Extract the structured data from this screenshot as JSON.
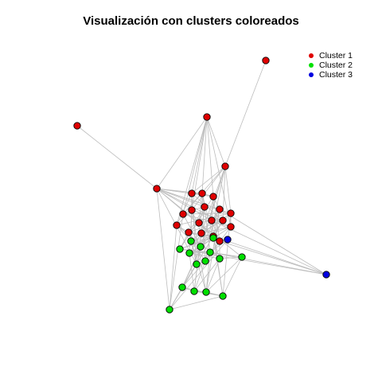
{
  "title": "Visualización con clusters coloreados",
  "legend": [
    {
      "label": "Cluster 1",
      "color": "#e00000"
    },
    {
      "label": "Cluster 2",
      "color": "#00e000"
    },
    {
      "label": "Cluster 3",
      "color": "#0000e0"
    }
  ],
  "style": {
    "edge_color": "#bdbdbd",
    "node_stroke": "#000000"
  },
  "nodes": [
    {
      "id": "n1",
      "cluster": 1
    },
    {
      "id": "n2",
      "cluster": 1
    },
    {
      "id": "n3",
      "cluster": 1
    },
    {
      "id": "n4",
      "cluster": 1
    },
    {
      "id": "n5",
      "cluster": 1
    },
    {
      "id": "n6",
      "cluster": 1
    },
    {
      "id": "n7",
      "cluster": 1
    },
    {
      "id": "n8",
      "cluster": 1
    },
    {
      "id": "n9",
      "cluster": 1
    },
    {
      "id": "n10",
      "cluster": 1
    },
    {
      "id": "n11",
      "cluster": 1
    },
    {
      "id": "n12",
      "cluster": 1
    },
    {
      "id": "n13",
      "cluster": 1
    },
    {
      "id": "n14",
      "cluster": 1
    },
    {
      "id": "n15",
      "cluster": 1
    },
    {
      "id": "n16",
      "cluster": 1
    },
    {
      "id": "n17",
      "cluster": 1
    },
    {
      "id": "n18",
      "cluster": 1
    },
    {
      "id": "n19",
      "cluster": 1
    },
    {
      "id": "n20",
      "cluster": 1
    },
    {
      "id": "n21",
      "cluster": 1
    },
    {
      "id": "n22",
      "cluster": 1
    },
    {
      "id": "n23",
      "cluster": 2
    },
    {
      "id": "n24",
      "cluster": 2
    },
    {
      "id": "n25",
      "cluster": 2
    },
    {
      "id": "n26",
      "cluster": 2
    },
    {
      "id": "n27",
      "cluster": 2
    },
    {
      "id": "n28",
      "cluster": 2
    },
    {
      "id": "n29",
      "cluster": 2
    },
    {
      "id": "n30",
      "cluster": 2
    },
    {
      "id": "n31",
      "cluster": 2
    },
    {
      "id": "n32",
      "cluster": 2
    },
    {
      "id": "n33",
      "cluster": 2
    },
    {
      "id": "n34",
      "cluster": 2
    },
    {
      "id": "n35",
      "cluster": 2
    },
    {
      "id": "n36",
      "cluster": 2
    },
    {
      "id": "n37",
      "cluster": 2
    },
    {
      "id": "n38",
      "cluster": 3
    },
    {
      "id": "n39",
      "cluster": 3
    }
  ],
  "edges": [
    [
      "n1",
      "n4"
    ],
    [
      "n2",
      "n5"
    ],
    [
      "n3",
      "n5"
    ],
    [
      "n3",
      "n4"
    ],
    [
      "n3",
      "n6"
    ],
    [
      "n3",
      "n7"
    ],
    [
      "n3",
      "n9"
    ],
    [
      "n5",
      "n6"
    ],
    [
      "n5",
      "n8"
    ],
    [
      "n5",
      "n14"
    ],
    [
      "n5",
      "n19"
    ],
    [
      "n5",
      "n29"
    ],
    [
      "n5",
      "n37"
    ],
    [
      "n4",
      "n14"
    ],
    [
      "n4",
      "n20"
    ],
    [
      "n4",
      "n30"
    ],
    [
      "n38",
      "n37"
    ],
    [
      "n38",
      "n22"
    ],
    [
      "n38",
      "n28"
    ],
    [
      "n6",
      "n7"
    ],
    [
      "n6",
      "n8"
    ],
    [
      "n6",
      "n10"
    ],
    [
      "n6",
      "n13"
    ],
    [
      "n6",
      "n17"
    ],
    [
      "n7",
      "n8"
    ],
    [
      "n7",
      "n9"
    ],
    [
      "n7",
      "n11"
    ],
    [
      "n7",
      "n15"
    ],
    [
      "n8",
      "n12"
    ],
    [
      "n8",
      "n16"
    ],
    [
      "n8",
      "n22"
    ],
    [
      "n9",
      "n10"
    ],
    [
      "n9",
      "n14"
    ],
    [
      "n9",
      "n19"
    ],
    [
      "n10",
      "n11"
    ],
    [
      "n10",
      "n13"
    ],
    [
      "n10",
      "n17"
    ],
    [
      "n10",
      "n20"
    ],
    [
      "n11",
      "n12"
    ],
    [
      "n11",
      "n15"
    ],
    [
      "n11",
      "n18"
    ],
    [
      "n12",
      "n16"
    ],
    [
      "n12",
      "n21"
    ],
    [
      "n12",
      "n39"
    ],
    [
      "n13",
      "n14"
    ],
    [
      "n13",
      "n18"
    ],
    [
      "n13",
      "n23"
    ],
    [
      "n14",
      "n19"
    ],
    [
      "n14",
      "n20"
    ],
    [
      "n14",
      "n26"
    ],
    [
      "n15",
      "n16"
    ],
    [
      "n15",
      "n18"
    ],
    [
      "n15",
      "n21"
    ],
    [
      "n16",
      "n17"
    ],
    [
      "n16",
      "n22"
    ],
    [
      "n16",
      "n39"
    ],
    [
      "n17",
      "n18"
    ],
    [
      "n17",
      "n20"
    ],
    [
      "n17",
      "n24"
    ],
    [
      "n18",
      "n21"
    ],
    [
      "n18",
      "n22"
    ],
    [
      "n18",
      "n25"
    ],
    [
      "n19",
      "n20"
    ],
    [
      "n19",
      "n23"
    ],
    [
      "n19",
      "n26"
    ],
    [
      "n20",
      "n23"
    ],
    [
      "n20",
      "n24"
    ],
    [
      "n20",
      "n27"
    ],
    [
      "n21",
      "n22"
    ],
    [
      "n21",
      "n39"
    ],
    [
      "n21",
      "n25"
    ],
    [
      "n22",
      "n39"
    ],
    [
      "n22",
      "n28"
    ],
    [
      "n23",
      "n24"
    ],
    [
      "n23",
      "n26"
    ],
    [
      "n23",
      "n29"
    ],
    [
      "n23",
      "n30"
    ],
    [
      "n24",
      "n25"
    ],
    [
      "n24",
      "n27"
    ],
    [
      "n24",
      "n31"
    ],
    [
      "n25",
      "n39"
    ],
    [
      "n25",
      "n28"
    ],
    [
      "n25",
      "n32"
    ],
    [
      "n26",
      "n27"
    ],
    [
      "n26",
      "n29"
    ],
    [
      "n26",
      "n33"
    ],
    [
      "n27",
      "n28"
    ],
    [
      "n27",
      "n31"
    ],
    [
      "n27",
      "n34"
    ],
    [
      "n28",
      "n32"
    ],
    [
      "n28",
      "n35"
    ],
    [
      "n28",
      "n39"
    ],
    [
      "n29",
      "n30"
    ],
    [
      "n29",
      "n33"
    ],
    [
      "n29",
      "n37"
    ],
    [
      "n30",
      "n33"
    ],
    [
      "n30",
      "n34"
    ],
    [
      "n31",
      "n32"
    ],
    [
      "n31",
      "n34"
    ],
    [
      "n31",
      "n35"
    ],
    [
      "n32",
      "n35"
    ],
    [
      "n32",
      "n36"
    ],
    [
      "n33",
      "n34"
    ],
    [
      "n33",
      "n37"
    ],
    [
      "n33",
      "n36"
    ],
    [
      "n34",
      "n35"
    ],
    [
      "n34",
      "n36"
    ],
    [
      "n35",
      "n36"
    ],
    [
      "n36",
      "n37"
    ],
    [
      "n6",
      "n23"
    ],
    [
      "n7",
      "n24"
    ],
    [
      "n8",
      "n25"
    ],
    [
      "n9",
      "n26"
    ],
    [
      "n10",
      "n27"
    ],
    [
      "n11",
      "n28"
    ],
    [
      "n13",
      "n31"
    ],
    [
      "n15",
      "n32"
    ],
    [
      "n17",
      "n33"
    ],
    [
      "n18",
      "n35"
    ],
    [
      "n19",
      "n30"
    ],
    [
      "n20",
      "n34"
    ],
    [
      "n21",
      "n36"
    ],
    [
      "n12",
      "n35"
    ],
    [
      "n16",
      "n36"
    ],
    [
      "n6",
      "n29"
    ],
    [
      "n7",
      "n30"
    ],
    [
      "n22",
      "n31"
    ],
    [
      "n13",
      "n37"
    ],
    [
      "n14",
      "n36"
    ],
    [
      "n9",
      "n37"
    ],
    [
      "n10",
      "n35"
    ],
    [
      "n11",
      "n34"
    ],
    [
      "n12",
      "n33"
    ],
    [
      "n4",
      "n9"
    ],
    [
      "n4",
      "n10"
    ],
    [
      "n4",
      "n17"
    ],
    [
      "n4",
      "n6"
    ],
    [
      "n4",
      "n26"
    ],
    [
      "n4",
      "n29"
    ],
    [
      "n5",
      "n7"
    ],
    [
      "n5",
      "n11"
    ],
    [
      "n5",
      "n15"
    ],
    [
      "n5",
      "n21"
    ],
    [
      "n5",
      "n12"
    ],
    [
      "n5",
      "n16"
    ],
    [
      "n3",
      "n8"
    ],
    [
      "n3",
      "n10"
    ],
    [
      "n3",
      "n13"
    ],
    [
      "n3",
      "n19"
    ]
  ]
}
